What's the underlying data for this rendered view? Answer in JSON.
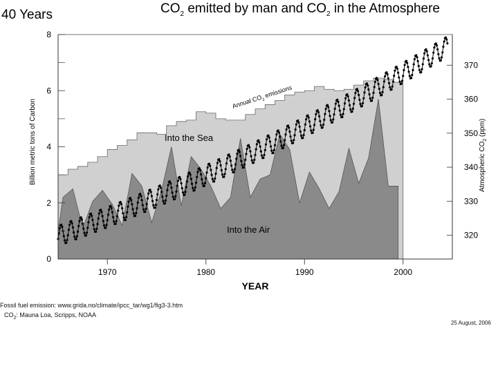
{
  "chart_data": {
    "type": "area",
    "corner_title": "40 Years",
    "title": {
      "before": "CO",
      "sub": "2",
      "mid": " emitted by man and CO",
      "sub2": "2",
      "after": " in the Atmosphere"
    },
    "xlabel": "YEAR",
    "ylabel_left": "Billion metric tons of Carbon",
    "ylabel_right": {
      "before": "Atmospheric CO",
      "sub": "2",
      "after": " (ppm)"
    },
    "xlim": [
      1965,
      2005
    ],
    "ylim_left": [
      0,
      8
    ],
    "ylim_right": [
      313,
      379
    ],
    "x_ticks": [
      1970,
      1980,
      1990,
      2000
    ],
    "y_left_ticks": [
      0,
      2,
      4,
      6,
      8
    ],
    "y_right_ticks": [
      320,
      330,
      340,
      350,
      360,
      370
    ],
    "series": [
      {
        "name": "Annual CO2 emissions",
        "label": {
          "before": "Annual CO",
          "sub": "2",
          "after": " emissions"
        },
        "style": "step",
        "color": "#d0d0d0",
        "x": [
          1965,
          1966,
          1967,
          1968,
          1969,
          1970,
          1971,
          1972,
          1973,
          1974,
          1975,
          1976,
          1977,
          1978,
          1979,
          1980,
          1981,
          1982,
          1983,
          1984,
          1985,
          1986,
          1987,
          1988,
          1989,
          1990,
          1991,
          1992,
          1993,
          1994,
          1995,
          1996,
          1997,
          1998,
          1999
        ],
        "values": [
          3.0,
          3.2,
          3.3,
          3.45,
          3.65,
          3.9,
          4.05,
          4.25,
          4.5,
          4.5,
          4.45,
          4.75,
          4.9,
          4.95,
          5.25,
          5.2,
          5.0,
          4.95,
          4.95,
          5.15,
          5.35,
          5.5,
          5.65,
          5.85,
          5.95,
          6.0,
          6.15,
          6.05,
          6.0,
          6.05,
          6.2,
          6.35,
          6.45,
          6.4,
          6.3
        ]
      },
      {
        "name": "Into the Air",
        "style": "area",
        "color": "#8a8a8a",
        "x": [
          1965,
          1965.5,
          1966.5,
          1967.5,
          1968.5,
          1969.5,
          1970.5,
          1971.5,
          1972.5,
          1973.5,
          1974.5,
          1975.5,
          1976.5,
          1977.5,
          1978.5,
          1979.5,
          1980.5,
          1981.5,
          1982.5,
          1983.5,
          1984.5,
          1985.5,
          1986.5,
          1987.5,
          1988.5,
          1989.5,
          1990.5,
          1991.5,
          1992.5,
          1993.5,
          1994.5,
          1995.5,
          1996.5,
          1997.5,
          1998.5,
          1999.5
        ],
        "values": [
          1.0,
          2.2,
          2.5,
          1.1,
          2.05,
          2.45,
          1.95,
          1.2,
          3.05,
          2.6,
          1.3,
          2.45,
          4.0,
          1.9,
          3.65,
          3.2,
          2.6,
          1.8,
          2.2,
          4.3,
          2.2,
          2.85,
          3.0,
          4.45,
          3.9,
          2.0,
          3.1,
          2.5,
          1.8,
          2.4,
          3.95,
          2.7,
          3.6,
          5.7,
          2.6,
          2.6
        ]
      },
      {
        "name": "Into the Sea",
        "style": "area_between",
        "color": "#d0d0d0"
      },
      {
        "name": "Atmospheric CO2 (Mauna Loa)",
        "style": "dotted_line",
        "axis": "right",
        "color": "#000000",
        "x_start": 1965,
        "x_end": 2004.5,
        "trend": {
          "start_ppm": 319.8,
          "end_ppm": 375.5,
          "curvature_ppm_per_year2": 0.009
        },
        "seasonal_amplitude_ppm": 3.0,
        "points_per_year": 12
      }
    ],
    "annotations": [
      "Into the Sea",
      "Into the Air"
    ]
  },
  "sources": {
    "line1": "Fossil fuel emission: www.grida.no/climate/ipcc_tar/wg1/fig3-3.htm",
    "line2_before": "CO",
    "line2_sub": "2",
    "line2_after": ": Mauna Loa, Scripps, NOAA",
    "date": "25 August, 2006"
  }
}
